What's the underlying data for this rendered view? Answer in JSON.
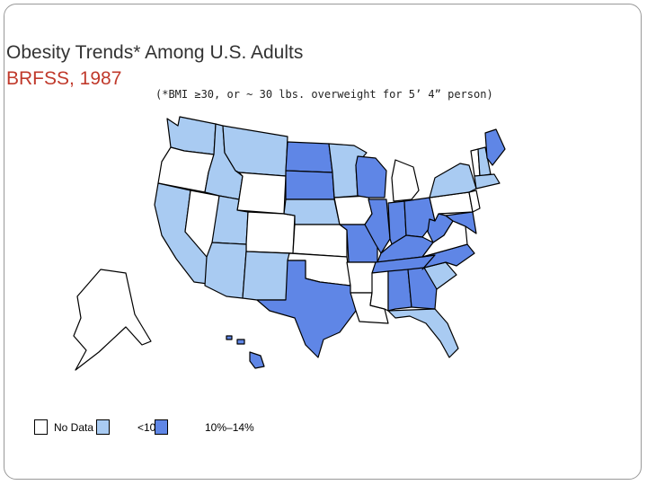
{
  "title": "Obesity Trends* Among U.S. Adults",
  "subtitle": "BRFSS, 1987",
  "note": "(*BMI ≥30, or ~ 30 lbs. overweight for 5’ 4” person)",
  "legend": [
    {
      "label": "No Data",
      "color": "#ffffff"
    },
    {
      "label": "<10%",
      "color": "#a9cbf2"
    },
    {
      "label": "10%–14%",
      "color": "#5f86e6"
    }
  ]
}
